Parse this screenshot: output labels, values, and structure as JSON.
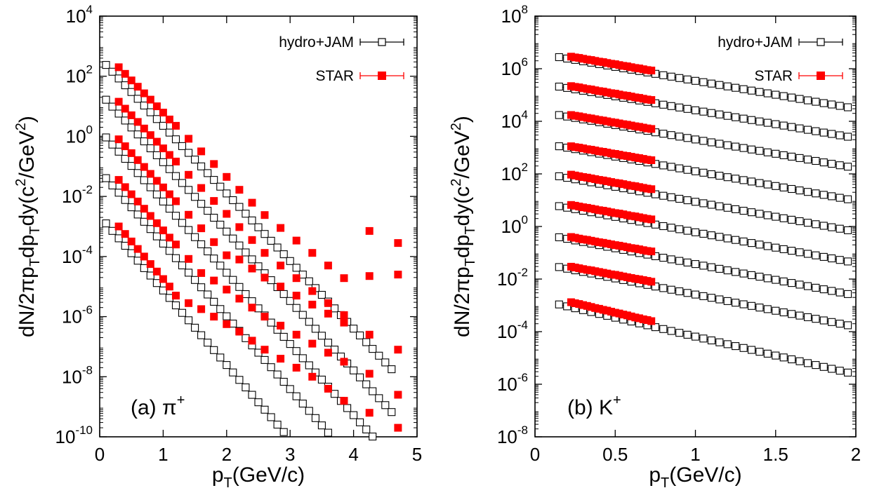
{
  "colors": {
    "hydro": "#000000",
    "star": "#ff0000",
    "axes": "#000000"
  },
  "chart_data": [
    {
      "type": "scatter",
      "panel_label": "(a) π",
      "panel_label_sup": "+",
      "xlabel": "p",
      "xlabel_sub": "T",
      "xlabel_tail": "(GeV/c)",
      "ylabel_parts": [
        "dN/2",
        "π",
        "p",
        "T",
        "dp",
        "T",
        "dy(c",
        "2",
        "/GeV",
        "2",
        ")"
      ],
      "xlim": [
        0,
        5
      ],
      "ylim_log10": [
        -10,
        4
      ],
      "yscale": "log",
      "xticks": [
        "0",
        "1",
        "2",
        "3",
        "4",
        "5"
      ],
      "yticks": [
        {
          "base": "10",
          "exp": "-10"
        },
        {
          "base": "10",
          "exp": "-8"
        },
        {
          "base": "10",
          "exp": "-6"
        },
        {
          "base": "10",
          "exp": "-4"
        },
        {
          "base": "10",
          "exp": "-2"
        },
        {
          "base": "10",
          "exp": "0"
        },
        {
          "base": "10",
          "exp": "2"
        },
        {
          "base": "10",
          "exp": "4"
        }
      ],
      "legend": [
        "hydro+JAM",
        "STAR"
      ],
      "legend_position": "top-right",
      "hydro_series": [
        {
          "name": "hydro+JAM",
          "x0": 0.1,
          "dx": 0.1,
          "x_end": 4.6,
          "a": 2.6,
          "b": -2.25
        },
        {
          "name": "hydro+JAM",
          "x0": 0.1,
          "dx": 0.1,
          "x_end": 4.6,
          "a": 1.45,
          "b": -2.31
        },
        {
          "name": "hydro+JAM",
          "x0": 0.1,
          "dx": 0.1,
          "x_end": 4.65,
          "a": 0.2,
          "b": -2.37
        },
        {
          "name": "hydro+JAM",
          "x0": 0.1,
          "dx": 0.1,
          "x_end": 4.1,
          "a": -1.15,
          "b": -2.42
        },
        {
          "name": "hydro+JAM",
          "x0": 0.1,
          "dx": 0.1,
          "x_end": 3.4,
          "a": -2.65,
          "b": -2.48
        }
      ],
      "star_series": [
        {
          "name": "STAR",
          "x": [
            0.3,
            0.4,
            0.5,
            0.6,
            0.7,
            0.8,
            0.9,
            1.0,
            1.1,
            1.2,
            1.4,
            1.6,
            1.8,
            2.0,
            2.2,
            2.4,
            2.6,
            2.85,
            3.1,
            3.35,
            3.6,
            3.85,
            4.25,
            4.7
          ],
          "y_log10": [
            2.3,
            2.08,
            1.86,
            1.65,
            1.43,
            1.22,
            1.0,
            0.79,
            0.56,
            0.35,
            -0.08,
            -0.5,
            -0.92,
            -1.35,
            -1.78,
            -2.21,
            -2.62,
            -3.05,
            -3.47,
            -3.88,
            -4.3,
            -4.72,
            -3.15,
            -3.55
          ]
        },
        {
          "name": "STAR",
          "x": [
            0.3,
            0.4,
            0.5,
            0.6,
            0.7,
            0.8,
            0.9,
            1.0,
            1.1,
            1.2,
            1.4,
            1.6,
            1.8,
            2.0,
            2.2,
            2.4,
            2.6,
            2.85,
            3.1,
            3.35,
            3.6,
            3.85,
            4.25,
            4.7
          ],
          "y_log10": [
            1.15,
            0.92,
            0.7,
            0.48,
            0.26,
            0.04,
            -0.18,
            -0.4,
            -0.62,
            -0.84,
            -1.28,
            -1.72,
            -2.15,
            -2.58,
            -3.02,
            -3.45,
            -3.88,
            -4.3,
            -4.72,
            -5.15,
            -5.55,
            -5.95,
            -4.65,
            -4.6
          ]
        },
        {
          "name": "STAR",
          "x": [
            0.3,
            0.4,
            0.5,
            0.6,
            0.7,
            0.8,
            0.9,
            1.0,
            1.1,
            1.2,
            1.4,
            1.6,
            1.8,
            2.0,
            2.2,
            2.4,
            2.6,
            2.85,
            3.1,
            3.35,
            3.6,
            3.85,
            4.25,
            4.7
          ],
          "y_log10": [
            -0.1,
            -0.33,
            -0.56,
            -0.79,
            -1.02,
            -1.25,
            -1.48,
            -1.7,
            -1.93,
            -2.16,
            -2.61,
            -3.06,
            -3.52,
            -3.96,
            -4.1,
            -4.4,
            -4.7,
            -5.0,
            -5.3,
            -5.6,
            -5.9,
            -6.2,
            -6.6,
            -7.1
          ]
        },
        {
          "name": "STAR",
          "x": [
            0.3,
            0.4,
            0.5,
            0.6,
            0.7,
            0.8,
            0.9,
            1.0,
            1.1,
            1.2,
            1.4,
            1.6,
            1.8,
            2.0,
            2.2,
            2.4,
            2.6,
            2.85,
            3.1,
            3.35,
            3.6,
            3.85,
            4.25,
            4.7
          ],
          "y_log10": [
            -1.45,
            -1.69,
            -1.93,
            -2.17,
            -2.41,
            -2.65,
            -2.89,
            -3.13,
            -3.37,
            -3.6,
            -4.08,
            -4.55,
            -4.8,
            -5.1,
            -5.4,
            -5.7,
            -6.0,
            -6.3,
            -6.6,
            -6.9,
            -7.2,
            -7.5,
            -7.9,
            -8.6
          ]
        },
        {
          "name": "STAR",
          "x": [
            0.3,
            0.4,
            0.5,
            0.6,
            0.7,
            0.8,
            0.9,
            1.0,
            1.1,
            1.2,
            1.4,
            1.6,
            1.8,
            2.0,
            2.2,
            2.4,
            2.6,
            2.85,
            3.1,
            3.35,
            3.6,
            3.85,
            4.25,
            4.7
          ],
          "y_log10": [
            -3.0,
            -3.25,
            -3.5,
            -3.75,
            -4.0,
            -4.25,
            -4.5,
            -4.75,
            -5.0,
            -5.3,
            -5.55,
            -5.75,
            -6.0,
            -6.25,
            -6.5,
            -6.8,
            -7.1,
            -7.4,
            -7.7,
            -8.0,
            -8.4,
            -8.8,
            -9.2,
            -9.7
          ]
        }
      ]
    },
    {
      "type": "scatter",
      "panel_label": "(b) K",
      "panel_label_sup": "+",
      "xlabel": "p",
      "xlabel_sub": "T",
      "xlabel_tail": "(GeV/c)",
      "ylabel_parts": [
        "dN/2",
        "π",
        "p",
        "T",
        "dp",
        "T",
        "dy(c",
        "2",
        "/GeV",
        "2",
        ")"
      ],
      "xlim": [
        0,
        2
      ],
      "ylim_log10": [
        -8,
        8
      ],
      "yscale": "log",
      "xticks": [
        "0",
        "0.5",
        "1",
        "1.5",
        "2"
      ],
      "yticks": [
        {
          "base": "10",
          "exp": "-8"
        },
        {
          "base": "10",
          "exp": "-6"
        },
        {
          "base": "10",
          "exp": "-4"
        },
        {
          "base": "10",
          "exp": "-2"
        },
        {
          "base": "10",
          "exp": "0"
        },
        {
          "base": "10",
          "exp": "2"
        },
        {
          "base": "10",
          "exp": "4"
        },
        {
          "base": "10",
          "exp": "6"
        },
        {
          "base": "10",
          "exp": "8"
        }
      ],
      "legend": [
        "hydro+JAM",
        "STAR"
      ],
      "legend_position": "top-right",
      "hydro_series": [
        {
          "name": "hydro+JAM",
          "x0": 0.15,
          "dx": 0.05,
          "x_end": 1.95,
          "a": 6.6,
          "b": -1.06
        },
        {
          "name": "hydro+JAM",
          "x0": 0.15,
          "dx": 0.05,
          "x_end": 1.95,
          "a": 5.48,
          "b": -1.06
        },
        {
          "name": "hydro+JAM",
          "x0": 0.15,
          "dx": 0.05,
          "x_end": 1.95,
          "a": 4.4,
          "b": -1.09
        },
        {
          "name": "hydro+JAM",
          "x0": 0.15,
          "dx": 0.05,
          "x_end": 1.95,
          "a": 3.22,
          "b": -1.12
        },
        {
          "name": "hydro+JAM",
          "x0": 0.15,
          "dx": 0.05,
          "x_end": 1.95,
          "a": 2.08,
          "b": -1.14
        },
        {
          "name": "hydro+JAM",
          "x0": 0.15,
          "dx": 0.05,
          "x_end": 1.95,
          "a": 0.95,
          "b": -1.17
        },
        {
          "name": "hydro+JAM",
          "x0": 0.15,
          "dx": 0.05,
          "x_end": 1.95,
          "a": -0.23,
          "b": -1.2
        },
        {
          "name": "hydro+JAM",
          "x0": 0.15,
          "dx": 0.05,
          "x_end": 1.95,
          "a": -1.36,
          "b": -1.23
        },
        {
          "name": "hydro+JAM",
          "x0": 0.15,
          "dx": 0.05,
          "x_end": 1.95,
          "a": -2.75,
          "b": -1.44
        }
      ],
      "star_series": [
        {
          "name": "STAR",
          "x": [
            0.225,
            0.25,
            0.275,
            0.3,
            0.325,
            0.35,
            0.375,
            0.4,
            0.425,
            0.45,
            0.475,
            0.5,
            0.525,
            0.55,
            0.575,
            0.6,
            0.625,
            0.65,
            0.675,
            0.7,
            0.725
          ],
          "y_log10": [
            6.46,
            6.43,
            6.41,
            6.38,
            6.35,
            6.33,
            6.3,
            6.27,
            6.25,
            6.22,
            6.19,
            6.17,
            6.14,
            6.11,
            6.09,
            6.06,
            6.03,
            6.01,
            5.98,
            5.95,
            5.93
          ]
        },
        {
          "name": "STAR",
          "x": [
            0.225,
            0.25,
            0.275,
            0.3,
            0.325,
            0.35,
            0.375,
            0.4,
            0.425,
            0.45,
            0.475,
            0.5,
            0.525,
            0.55,
            0.575,
            0.6,
            0.625,
            0.65,
            0.675,
            0.7,
            0.725
          ],
          "y_log10": [
            5.34,
            5.31,
            5.29,
            5.26,
            5.23,
            5.21,
            5.18,
            5.15,
            5.13,
            5.1,
            5.07,
            5.05,
            5.02,
            4.99,
            4.97,
            4.94,
            4.91,
            4.89,
            4.86,
            4.83,
            4.81
          ]
        },
        {
          "name": "STAR",
          "x": [
            0.225,
            0.25,
            0.275,
            0.3,
            0.325,
            0.35,
            0.375,
            0.4,
            0.425,
            0.45,
            0.475,
            0.5,
            0.525,
            0.55,
            0.575,
            0.6,
            0.625,
            0.65,
            0.675,
            0.7,
            0.725
          ],
          "y_log10": [
            4.24,
            4.21,
            4.19,
            4.16,
            4.13,
            4.11,
            4.08,
            4.05,
            4.03,
            4.0,
            3.97,
            3.95,
            3.92,
            3.89,
            3.87,
            3.84,
            3.81,
            3.79,
            3.76,
            3.73,
            3.71
          ]
        },
        {
          "name": "STAR",
          "x": [
            0.225,
            0.25,
            0.275,
            0.3,
            0.325,
            0.35,
            0.375,
            0.4,
            0.425,
            0.45,
            0.475,
            0.5,
            0.525,
            0.55,
            0.575,
            0.6,
            0.625,
            0.65,
            0.675,
            0.7,
            0.725
          ],
          "y_log10": [
            3.05,
            3.02,
            3.0,
            2.97,
            2.94,
            2.92,
            2.89,
            2.86,
            2.84,
            2.81,
            2.78,
            2.76,
            2.73,
            2.7,
            2.68,
            2.65,
            2.62,
            2.6,
            2.57,
            2.54,
            2.52
          ]
        },
        {
          "name": "STAR",
          "x": [
            0.225,
            0.25,
            0.275,
            0.3,
            0.325,
            0.35,
            0.375,
            0.4,
            0.425,
            0.45,
            0.475,
            0.5,
            0.525,
            0.55,
            0.575,
            0.6,
            0.625,
            0.65,
            0.675,
            0.7,
            0.725
          ],
          "y_log10": [
            1.97,
            1.94,
            1.91,
            1.88,
            1.86,
            1.83,
            1.8,
            1.77,
            1.75,
            1.72,
            1.69,
            1.66,
            1.64,
            1.61,
            1.58,
            1.55,
            1.53,
            1.5,
            1.47,
            1.44,
            1.42
          ]
        },
        {
          "name": "STAR",
          "x": [
            0.225,
            0.25,
            0.275,
            0.3,
            0.325,
            0.35,
            0.375,
            0.4,
            0.425,
            0.45,
            0.475,
            0.5,
            0.525,
            0.55,
            0.575,
            0.6,
            0.625,
            0.65,
            0.675,
            0.7,
            0.725
          ],
          "y_log10": [
            0.82,
            0.79,
            0.76,
            0.73,
            0.71,
            0.68,
            0.65,
            0.62,
            0.6,
            0.57,
            0.54,
            0.51,
            0.49,
            0.46,
            0.43,
            0.4,
            0.38,
            0.35,
            0.32,
            0.29,
            0.27
          ]
        },
        {
          "name": "STAR",
          "x": [
            0.225,
            0.25,
            0.275,
            0.3,
            0.325,
            0.35,
            0.375,
            0.4,
            0.425,
            0.45,
            0.475,
            0.5,
            0.525,
            0.55,
            0.575,
            0.6,
            0.625,
            0.65,
            0.675,
            0.7,
            0.725
          ],
          "y_log10": [
            -0.4,
            -0.43,
            -0.46,
            -0.49,
            -0.51,
            -0.54,
            -0.57,
            -0.6,
            -0.62,
            -0.65,
            -0.68,
            -0.71,
            -0.73,
            -0.76,
            -0.79,
            -0.82,
            -0.84,
            -0.87,
            -0.9,
            -0.93,
            -0.95
          ]
        },
        {
          "name": "STAR",
          "x": [
            0.225,
            0.25,
            0.275,
            0.3,
            0.325,
            0.35,
            0.375,
            0.4,
            0.425,
            0.45,
            0.475,
            0.5,
            0.525,
            0.55,
            0.575,
            0.6,
            0.625,
            0.65,
            0.675,
            0.7,
            0.725
          ],
          "y_log10": [
            -1.53,
            -1.56,
            -1.59,
            -1.62,
            -1.65,
            -1.67,
            -1.7,
            -1.73,
            -1.76,
            -1.79,
            -1.82,
            -1.84,
            -1.87,
            -1.9,
            -1.93,
            -1.96,
            -1.99,
            -2.01,
            -2.04,
            -2.07,
            -2.1
          ]
        },
        {
          "name": "STAR",
          "x": [
            0.225,
            0.25,
            0.275,
            0.3,
            0.325,
            0.35,
            0.375,
            0.4,
            0.425,
            0.45,
            0.475,
            0.5,
            0.525,
            0.55,
            0.575,
            0.6,
            0.625,
            0.65,
            0.675,
            0.7,
            0.725
          ],
          "y_log10": [
            -2.88,
            -2.92,
            -2.95,
            -2.99,
            -3.02,
            -3.06,
            -3.1,
            -3.13,
            -3.17,
            -3.2,
            -3.24,
            -3.28,
            -3.31,
            -3.35,
            -3.38,
            -3.42,
            -3.46,
            -3.49,
            -3.53,
            -3.56,
            -3.6
          ]
        }
      ]
    }
  ]
}
